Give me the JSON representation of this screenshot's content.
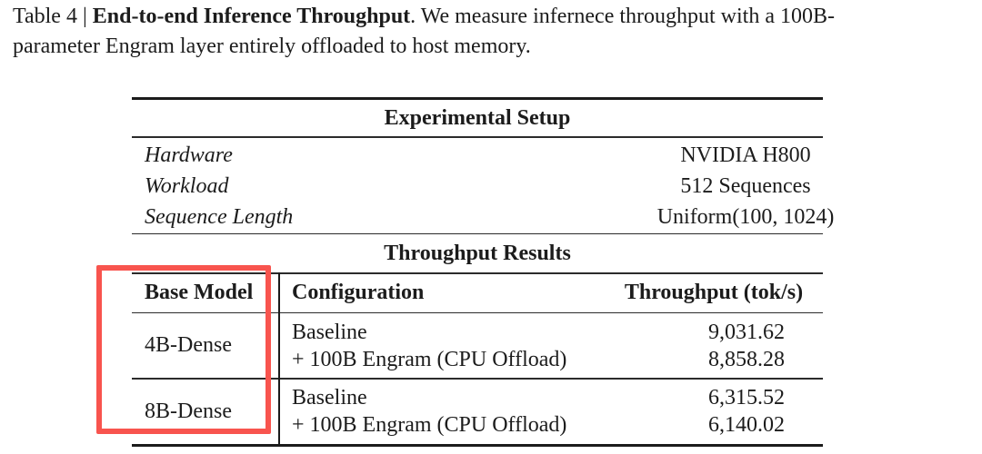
{
  "caption": {
    "label": "Table 4 | ",
    "title_bold": "End-to-end Inference Throughput",
    "body_line1": ". We measure infernece throughput with a 100B-",
    "body_line2": "parameter Engram layer entirely offloaded to host memory."
  },
  "table": {
    "setup": {
      "title": "Experimental Setup",
      "rows": [
        {
          "label": "Hardware",
          "value": "NVIDIA H800"
        },
        {
          "label": "Workload",
          "value": "512 Sequences"
        },
        {
          "label": "Sequence Length",
          "value": "Uniform(100, 1024)"
        }
      ]
    },
    "results": {
      "title": "Throughput Results",
      "columns": [
        "Base Model",
        "Configuration",
        "Throughput (tok/s)"
      ],
      "groups": [
        {
          "model": "4B-Dense",
          "rows": [
            {
              "config": "Baseline",
              "throughput": "9,031.62"
            },
            {
              "config": "+ 100B Engram (CPU Offload)",
              "throughput": "8,858.28"
            }
          ]
        },
        {
          "model": "8B-Dense",
          "rows": [
            {
              "config": "Baseline",
              "throughput": "6,315.52"
            },
            {
              "config": "+ 100B Engram (CPU Offload)",
              "throughput": "6,140.02"
            }
          ]
        }
      ]
    }
  },
  "annotation": {
    "shape": "rectangle",
    "color": "#f8544e",
    "highlights": "base-model-column"
  },
  "colors": {
    "background": "#ffffff",
    "text": "#1c1c1c",
    "rule": "#1b1b1b"
  }
}
